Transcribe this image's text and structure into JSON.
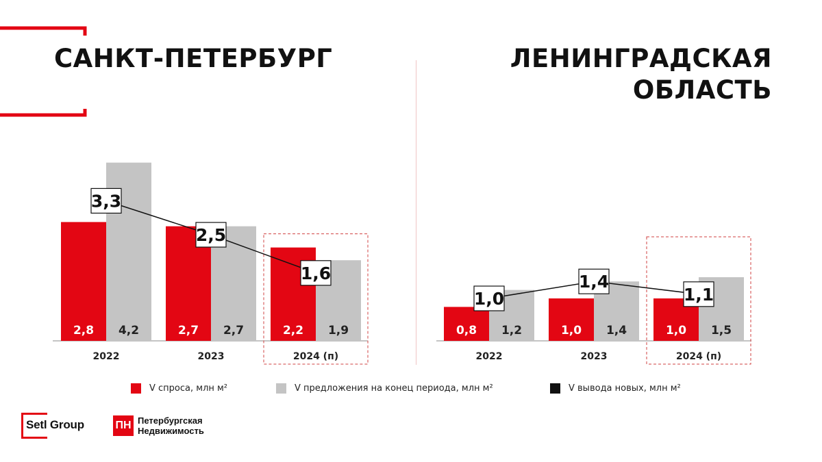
{
  "panels": [
    {
      "title": "САНКТ-ПЕТЕРБУРГ"
    },
    {
      "title": "ЛЕНИНГРАДСКАЯ\nОБЛАСТЬ"
    }
  ],
  "colors": {
    "demand": "#e30613",
    "supply": "#c4c4c4",
    "new_output": "#111111",
    "accent": "#e30613"
  },
  "legend": [
    {
      "label": "V спроса, млн м²",
      "color": "#e30613"
    },
    {
      "label": "V предложения на конец периода, млн м²",
      "color": "#c4c4c4"
    },
    {
      "label": "V вывода новых, млн м²",
      "color": "#111111"
    }
  ],
  "chart_data": [
    {
      "type": "bar",
      "title": "САНКТ-ПЕТЕРБУРГ",
      "categories": [
        "2022",
        "2023",
        "2024 (п)"
      ],
      "highlighted_category": "2024 (п)",
      "series": [
        {
          "name": "V спроса, млн м²",
          "kind": "bar",
          "values": [
            2.8,
            2.7,
            2.2
          ],
          "labels": [
            "2,8",
            "2,7",
            "2,2"
          ]
        },
        {
          "name": "V предложения на конец периода, млн м²",
          "kind": "bar",
          "values": [
            4.2,
            2.7,
            1.9
          ],
          "labels": [
            "4,2",
            "2,7",
            "1,9"
          ]
        },
        {
          "name": "V вывода новых, млн м²",
          "kind": "line",
          "values": [
            3.3,
            2.5,
            1.6
          ],
          "labels": [
            "3,3",
            "2,5",
            "1,6"
          ]
        }
      ],
      "ylim": [
        0,
        4.5
      ],
      "grid": false
    },
    {
      "type": "bar",
      "title": "ЛЕНИНГРАДСКАЯ ОБЛАСТЬ",
      "categories": [
        "2022",
        "2023",
        "2024 (п)"
      ],
      "highlighted_category": "2024 (п)",
      "series": [
        {
          "name": "V спроса, млн м²",
          "kind": "bar",
          "values": [
            0.8,
            1.0,
            1.0
          ],
          "labels": [
            "0,8",
            "1,0",
            "1,0"
          ]
        },
        {
          "name": "V предложения на конец периода, млн м²",
          "kind": "bar",
          "values": [
            1.2,
            1.4,
            1.5
          ],
          "labels": [
            "1,2",
            "1,4",
            "1,5"
          ]
        },
        {
          "name": "V вывода новых, млн м²",
          "kind": "line",
          "values": [
            1.0,
            1.4,
            1.1
          ],
          "labels": [
            "1,0",
            "1,4",
            "1,1"
          ]
        }
      ],
      "ylim": [
        0,
        4.5
      ],
      "grid": false
    }
  ],
  "logos": {
    "setl": "Setl Group",
    "pn_mark": "ПН",
    "pn_line1": "Петербургская",
    "pn_line2": "Недвижимость"
  }
}
